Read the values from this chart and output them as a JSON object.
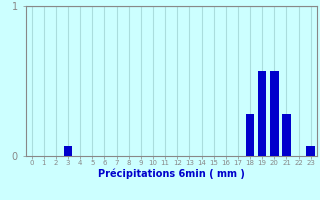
{
  "xlabel": "Précipitations 6min ( mm )",
  "hours": [
    0,
    1,
    2,
    3,
    4,
    5,
    6,
    7,
    8,
    9,
    10,
    11,
    12,
    13,
    14,
    15,
    16,
    17,
    18,
    19,
    20,
    21,
    22,
    23
  ],
  "values": [
    0,
    0,
    0,
    0.07,
    0,
    0,
    0,
    0,
    0,
    0,
    0,
    0,
    0,
    0,
    0,
    0,
    0,
    0,
    0.28,
    0.57,
    0.57,
    0.28,
    0,
    0.07
  ],
  "bar_color": "#0000cc",
  "bg_color": "#ccffff",
  "grid_color": "#aadddd",
  "axis_color": "#888888",
  "text_color": "#0000cc",
  "ylim": [
    0,
    1.0
  ],
  "yticks": [
    0,
    1
  ],
  "bar_width": 0.7
}
